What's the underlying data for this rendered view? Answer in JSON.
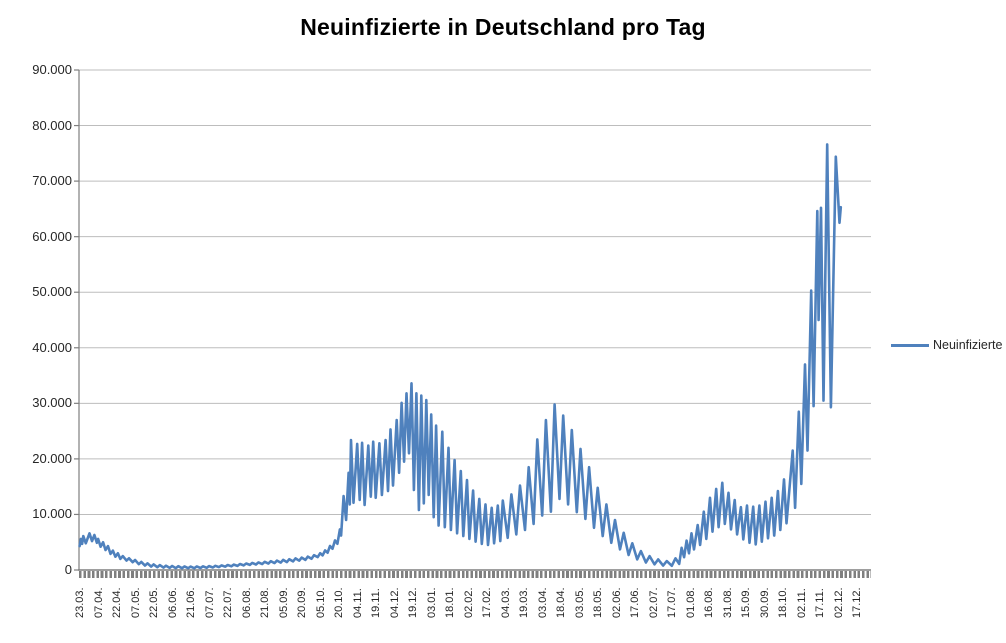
{
  "chart_data": {
    "type": "line",
    "title": "Neuinfizierte in Deutschland pro Tag",
    "legend": {
      "position": "right",
      "entries": [
        "Neuinfizierte"
      ]
    },
    "grid": true,
    "colors": {
      "series": "#4F81BD",
      "gridline": "#BDBDBD",
      "axis": "#7F7F7F",
      "text": "#262626",
      "background": "#FFFFFF"
    },
    "y": {
      "min": 0,
      "max": 90000,
      "tick_step": 10000,
      "tick_labels": [
        "0",
        "10.000",
        "20.000",
        "30.000",
        "40.000",
        "50.000",
        "60.000",
        "70.000",
        "80.000",
        "90.000"
      ]
    },
    "x": {
      "tick_interval_days": 15,
      "total_categories": 642,
      "tick_labels": [
        "23.03.",
        "07.04.",
        "22.04.",
        "07.05.",
        "22.05.",
        "06.06.",
        "21.06.",
        "07.07.",
        "22.07.",
        "06.08.",
        "21.08.",
        "05.09.",
        "20.09.",
        "05.10.",
        "20.10.",
        "04.11.",
        "19.11.",
        "04.12.",
        "19.12.",
        "03.01.",
        "18.01.",
        "02.02.",
        "17.02.",
        "04.03.",
        "19.03.",
        "03.04.",
        "18.04.",
        "03.05.",
        "18.05.",
        "02.06.",
        "17.06.",
        "02.07.",
        "17.07.",
        "01.08.",
        "16.08.",
        "31.08.",
        "15.09.",
        "30.09.",
        "18.10.",
        "02.11.",
        "17.11.",
        "02.12.",
        "17.12."
      ]
    },
    "series": [
      {
        "name": "Neuinfizierte",
        "color": "#4F81BD",
        "points": [
          [
            0,
            4300
          ],
          [
            1,
            5600
          ],
          [
            2,
            4700
          ],
          [
            3,
            6100
          ],
          [
            5,
            4800
          ],
          [
            8,
            6600
          ],
          [
            10,
            5200
          ],
          [
            12,
            6300
          ],
          [
            14,
            4900
          ],
          [
            15,
            5600
          ],
          [
            17,
            4200
          ],
          [
            19,
            5000
          ],
          [
            21,
            3600
          ],
          [
            23,
            4300
          ],
          [
            25,
            2900
          ],
          [
            27,
            3500
          ],
          [
            29,
            2400
          ],
          [
            31,
            3000
          ],
          [
            33,
            2000
          ],
          [
            35,
            2500
          ],
          [
            38,
            1700
          ],
          [
            40,
            2100
          ],
          [
            43,
            1400
          ],
          [
            45,
            1800
          ],
          [
            48,
            1050
          ],
          [
            50,
            1450
          ],
          [
            53,
            800
          ],
          [
            55,
            1200
          ],
          [
            58,
            620
          ],
          [
            60,
            1000
          ],
          [
            63,
            500
          ],
          [
            65,
            880
          ],
          [
            68,
            430
          ],
          [
            70,
            780
          ],
          [
            73,
            380
          ],
          [
            75,
            720
          ],
          [
            78,
            350
          ],
          [
            80,
            680
          ],
          [
            83,
            330
          ],
          [
            85,
            640
          ],
          [
            88,
            320
          ],
          [
            90,
            620
          ],
          [
            93,
            330
          ],
          [
            95,
            640
          ],
          [
            98,
            360
          ],
          [
            100,
            660
          ],
          [
            103,
            400
          ],
          [
            105,
            700
          ],
          [
            108,
            450
          ],
          [
            110,
            760
          ],
          [
            113,
            520
          ],
          [
            115,
            830
          ],
          [
            118,
            590
          ],
          [
            120,
            900
          ],
          [
            123,
            660
          ],
          [
            125,
            980
          ],
          [
            128,
            740
          ],
          [
            130,
            1080
          ],
          [
            133,
            830
          ],
          [
            135,
            1170
          ],
          [
            138,
            910
          ],
          [
            140,
            1270
          ],
          [
            143,
            990
          ],
          [
            145,
            1370
          ],
          [
            148,
            1070
          ],
          [
            150,
            1480
          ],
          [
            153,
            1150
          ],
          [
            155,
            1590
          ],
          [
            158,
            1240
          ],
          [
            160,
            1700
          ],
          [
            163,
            1330
          ],
          [
            165,
            1820
          ],
          [
            168,
            1430
          ],
          [
            170,
            1950
          ],
          [
            173,
            1550
          ],
          [
            175,
            2090
          ],
          [
            178,
            1670
          ],
          [
            180,
            2240
          ],
          [
            183,
            1820
          ],
          [
            185,
            2420
          ],
          [
            188,
            2020
          ],
          [
            190,
            2670
          ],
          [
            193,
            2320
          ],
          [
            195,
            3020
          ],
          [
            197,
            2620
          ],
          [
            199,
            3520
          ],
          [
            201,
            3120
          ],
          [
            203,
            4320
          ],
          [
            205,
            3820
          ],
          [
            207,
            5320
          ],
          [
            209,
            4720
          ],
          [
            211,
            7300
          ],
          [
            212,
            6200
          ],
          [
            214,
            13300
          ],
          [
            216,
            9000
          ],
          [
            218,
            17500
          ],
          [
            219,
            11800
          ],
          [
            220,
            23400
          ],
          [
            222,
            12100
          ],
          [
            225,
            22700
          ],
          [
            227,
            12600
          ],
          [
            229,
            22900
          ],
          [
            231,
            11700
          ],
          [
            234,
            22400
          ],
          [
            236,
            13200
          ],
          [
            238,
            23100
          ],
          [
            240,
            13000
          ],
          [
            243,
            22800
          ],
          [
            245,
            13500
          ],
          [
            248,
            23400
          ],
          [
            250,
            14200
          ],
          [
            252,
            25300
          ],
          [
            254,
            15200
          ],
          [
            257,
            27000
          ],
          [
            259,
            17500
          ],
          [
            261,
            30100
          ],
          [
            263,
            19500
          ],
          [
            265,
            31800
          ],
          [
            267,
            21000
          ],
          [
            269,
            33600
          ],
          [
            270,
            24500
          ],
          [
            271,
            14400
          ],
          [
            273,
            31800
          ],
          [
            275,
            10800
          ],
          [
            277,
            31400
          ],
          [
            279,
            12000
          ],
          [
            281,
            30600
          ],
          [
            283,
            13500
          ],
          [
            285,
            28000
          ],
          [
            287,
            9500
          ],
          [
            289,
            26000
          ],
          [
            291,
            8000
          ],
          [
            294,
            24900
          ],
          [
            296,
            7700
          ],
          [
            299,
            22000
          ],
          [
            301,
            7200
          ],
          [
            304,
            19800
          ],
          [
            306,
            6600
          ],
          [
            309,
            17800
          ],
          [
            311,
            6100
          ],
          [
            314,
            16200
          ],
          [
            316,
            5600
          ],
          [
            319,
            14300
          ],
          [
            321,
            5100
          ],
          [
            324,
            12800
          ],
          [
            326,
            4700
          ],
          [
            329,
            11800
          ],
          [
            331,
            4500
          ],
          [
            334,
            11200
          ],
          [
            336,
            4800
          ],
          [
            339,
            11600
          ],
          [
            341,
            5200
          ],
          [
            343,
            12500
          ],
          [
            347,
            5800
          ],
          [
            350,
            13600
          ],
          [
            354,
            6400
          ],
          [
            357,
            15200
          ],
          [
            361,
            7200
          ],
          [
            364,
            18500
          ],
          [
            368,
            8300
          ],
          [
            371,
            23500
          ],
          [
            375,
            9800
          ],
          [
            378,
            27000
          ],
          [
            382,
            10500
          ],
          [
            385,
            29800
          ],
          [
            389,
            12800
          ],
          [
            392,
            27800
          ],
          [
            396,
            11800
          ],
          [
            399,
            25200
          ],
          [
            403,
            10400
          ],
          [
            406,
            21800
          ],
          [
            410,
            9200
          ],
          [
            413,
            18500
          ],
          [
            417,
            7600
          ],
          [
            420,
            14800
          ],
          [
            424,
            6100
          ],
          [
            427,
            11800
          ],
          [
            431,
            4900
          ],
          [
            434,
            9000
          ],
          [
            438,
            3700
          ],
          [
            441,
            6700
          ],
          [
            445,
            2700
          ],
          [
            448,
            4800
          ],
          [
            452,
            1900
          ],
          [
            455,
            3400
          ],
          [
            459,
            1350
          ],
          [
            462,
            2500
          ],
          [
            466,
            1000
          ],
          [
            469,
            1900
          ],
          [
            473,
            800
          ],
          [
            476,
            1600
          ],
          [
            480,
            750
          ],
          [
            483,
            2100
          ],
          [
            486,
            1100
          ],
          [
            488,
            4000
          ],
          [
            490,
            2300
          ],
          [
            492,
            5300
          ],
          [
            494,
            3000
          ],
          [
            496,
            6600
          ],
          [
            498,
            3700
          ],
          [
            501,
            8100
          ],
          [
            503,
            4500
          ],
          [
            506,
            10500
          ],
          [
            508,
            5600
          ],
          [
            511,
            13000
          ],
          [
            513,
            6900
          ],
          [
            516,
            14600
          ],
          [
            518,
            7700
          ],
          [
            521,
            15700
          ],
          [
            523,
            8300
          ],
          [
            526,
            13900
          ],
          [
            528,
            7300
          ],
          [
            531,
            12600
          ],
          [
            533,
            6400
          ],
          [
            536,
            11300
          ],
          [
            538,
            5500
          ],
          [
            541,
            11600
          ],
          [
            543,
            4900
          ],
          [
            546,
            11400
          ],
          [
            548,
            4600
          ],
          [
            551,
            11600
          ],
          [
            553,
            5100
          ],
          [
            556,
            12300
          ],
          [
            558,
            5700
          ],
          [
            561,
            13000
          ],
          [
            563,
            6200
          ],
          [
            566,
            14200
          ],
          [
            568,
            7200
          ],
          [
            571,
            16300
          ],
          [
            573,
            8400
          ],
          [
            578,
            21500
          ],
          [
            580,
            11200
          ],
          [
            583,
            28500
          ],
          [
            585,
            15500
          ],
          [
            588,
            37000
          ],
          [
            590,
            21500
          ],
          [
            593,
            50300
          ],
          [
            595,
            29500
          ],
          [
            598,
            64600
          ],
          [
            599,
            45000
          ],
          [
            601,
            65200
          ],
          [
            603,
            30500
          ],
          [
            606,
            76600
          ],
          [
            609,
            29300
          ],
          [
            613,
            74400
          ],
          [
            616,
            62500
          ],
          [
            617,
            65300
          ]
        ]
      }
    ]
  }
}
